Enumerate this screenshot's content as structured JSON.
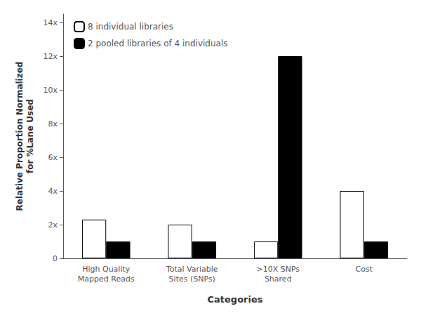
{
  "chart_data": {
    "type": "bar",
    "categories": [
      "High Quality\nMapped Reads",
      "Total Variable\nSites (SNPs)",
      ">10X SNPs\nShared",
      "Cost"
    ],
    "series": [
      {
        "name": "8 individual libraries",
        "color": "#ffffff",
        "values": [
          2.3,
          2.0,
          1.0,
          4.0
        ]
      },
      {
        "name": "2 pooled libraries of 4 individuals",
        "color": "#000000",
        "values": [
          1.0,
          1.0,
          12.0,
          1.0
        ]
      }
    ],
    "xlabel": "Categories",
    "ylabel": "Relative Proportion Normalized\nfor %Lane Used",
    "ylim": [
      0,
      14.5
    ],
    "yticks": [
      0,
      {
        "value": 2,
        "label": "2x"
      },
      {
        "value": 4,
        "label": "4x"
      },
      {
        "value": 6,
        "label": "6x"
      },
      {
        "value": 8,
        "label": "8x"
      },
      {
        "value": 10,
        "label": "10x"
      },
      {
        "value": 12,
        "label": "12x"
      },
      {
        "value": 14,
        "label": "14x"
      }
    ],
    "grid": false,
    "legend": "upper left"
  }
}
